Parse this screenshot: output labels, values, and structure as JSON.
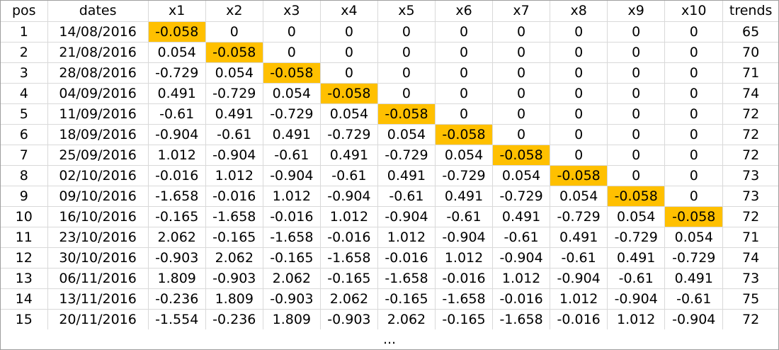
{
  "colors": {
    "highlight": "#ffc000",
    "gridline": "#d9d9d9",
    "border": "#9e9e9e"
  },
  "table": {
    "headers": [
      "pos",
      "dates",
      "x1",
      "x2",
      "x3",
      "x4",
      "x5",
      "x6",
      "x7",
      "x8",
      "x9",
      "x10",
      "trends"
    ],
    "rows": [
      [
        "1",
        "14/08/2016",
        "-0.058",
        "0",
        "0",
        "0",
        "0",
        "0",
        "0",
        "0",
        "0",
        "0",
        "65"
      ],
      [
        "2",
        "21/08/2016",
        "0.054",
        "-0.058",
        "0",
        "0",
        "0",
        "0",
        "0",
        "0",
        "0",
        "0",
        "70"
      ],
      [
        "3",
        "28/08/2016",
        "-0.729",
        "0.054",
        "-0.058",
        "0",
        "0",
        "0",
        "0",
        "0",
        "0",
        "0",
        "71"
      ],
      [
        "4",
        "04/09/2016",
        "0.491",
        "-0.729",
        "0.054",
        "-0.058",
        "0",
        "0",
        "0",
        "0",
        "0",
        "0",
        "74"
      ],
      [
        "5",
        "11/09/2016",
        "-0.61",
        "0.491",
        "-0.729",
        "0.054",
        "-0.058",
        "0",
        "0",
        "0",
        "0",
        "0",
        "72"
      ],
      [
        "6",
        "18/09/2016",
        "-0.904",
        "-0.61",
        "0.491",
        "-0.729",
        "0.054",
        "-0.058",
        "0",
        "0",
        "0",
        "0",
        "72"
      ],
      [
        "7",
        "25/09/2016",
        "1.012",
        "-0.904",
        "-0.61",
        "0.491",
        "-0.729",
        "0.054",
        "-0.058",
        "0",
        "0",
        "0",
        "72"
      ],
      [
        "8",
        "02/10/2016",
        "-0.016",
        "1.012",
        "-0.904",
        "-0.61",
        "0.491",
        "-0.729",
        "0.054",
        "-0.058",
        "0",
        "0",
        "73"
      ],
      [
        "9",
        "09/10/2016",
        "-1.658",
        "-0.016",
        "1.012",
        "-0.904",
        "-0.61",
        "0.491",
        "-0.729",
        "0.054",
        "-0.058",
        "0",
        "73"
      ],
      [
        "10",
        "16/10/2016",
        "-0.165",
        "-1.658",
        "-0.016",
        "1.012",
        "-0.904",
        "-0.61",
        "0.491",
        "-0.729",
        "0.054",
        "-0.058",
        "72"
      ],
      [
        "11",
        "23/10/2016",
        "2.062",
        "-0.165",
        "-1.658",
        "-0.016",
        "1.012",
        "-0.904",
        "-0.61",
        "0.491",
        "-0.729",
        "0.054",
        "71"
      ],
      [
        "12",
        "30/10/2016",
        "-0.903",
        "2.062",
        "-0.165",
        "-1.658",
        "-0.016",
        "1.012",
        "-0.904",
        "-0.61",
        "0.491",
        "-0.729",
        "74"
      ],
      [
        "13",
        "06/11/2016",
        "1.809",
        "-0.903",
        "2.062",
        "-0.165",
        "-1.658",
        "-0.016",
        "1.012",
        "-0.904",
        "-0.61",
        "0.491",
        "73"
      ],
      [
        "14",
        "13/11/2016",
        "-0.236",
        "1.809",
        "-0.903",
        "2.062",
        "-0.165",
        "-1.658",
        "-0.016",
        "1.012",
        "-0.904",
        "-0.61",
        "75"
      ],
      [
        "15",
        "20/11/2016",
        "-1.554",
        "-0.236",
        "1.809",
        "-0.903",
        "2.062",
        "-0.165",
        "-1.658",
        "-0.016",
        "1.012",
        "-0.904",
        "72"
      ]
    ],
    "highlighted_cells": [
      [
        1,
        "x1"
      ],
      [
        2,
        "x2"
      ],
      [
        3,
        "x3"
      ],
      [
        4,
        "x4"
      ],
      [
        5,
        "x5"
      ],
      [
        6,
        "x6"
      ],
      [
        7,
        "x7"
      ],
      [
        8,
        "x8"
      ],
      [
        9,
        "x9"
      ],
      [
        10,
        "x10"
      ]
    ]
  },
  "footer": {
    "continuation": "..."
  }
}
